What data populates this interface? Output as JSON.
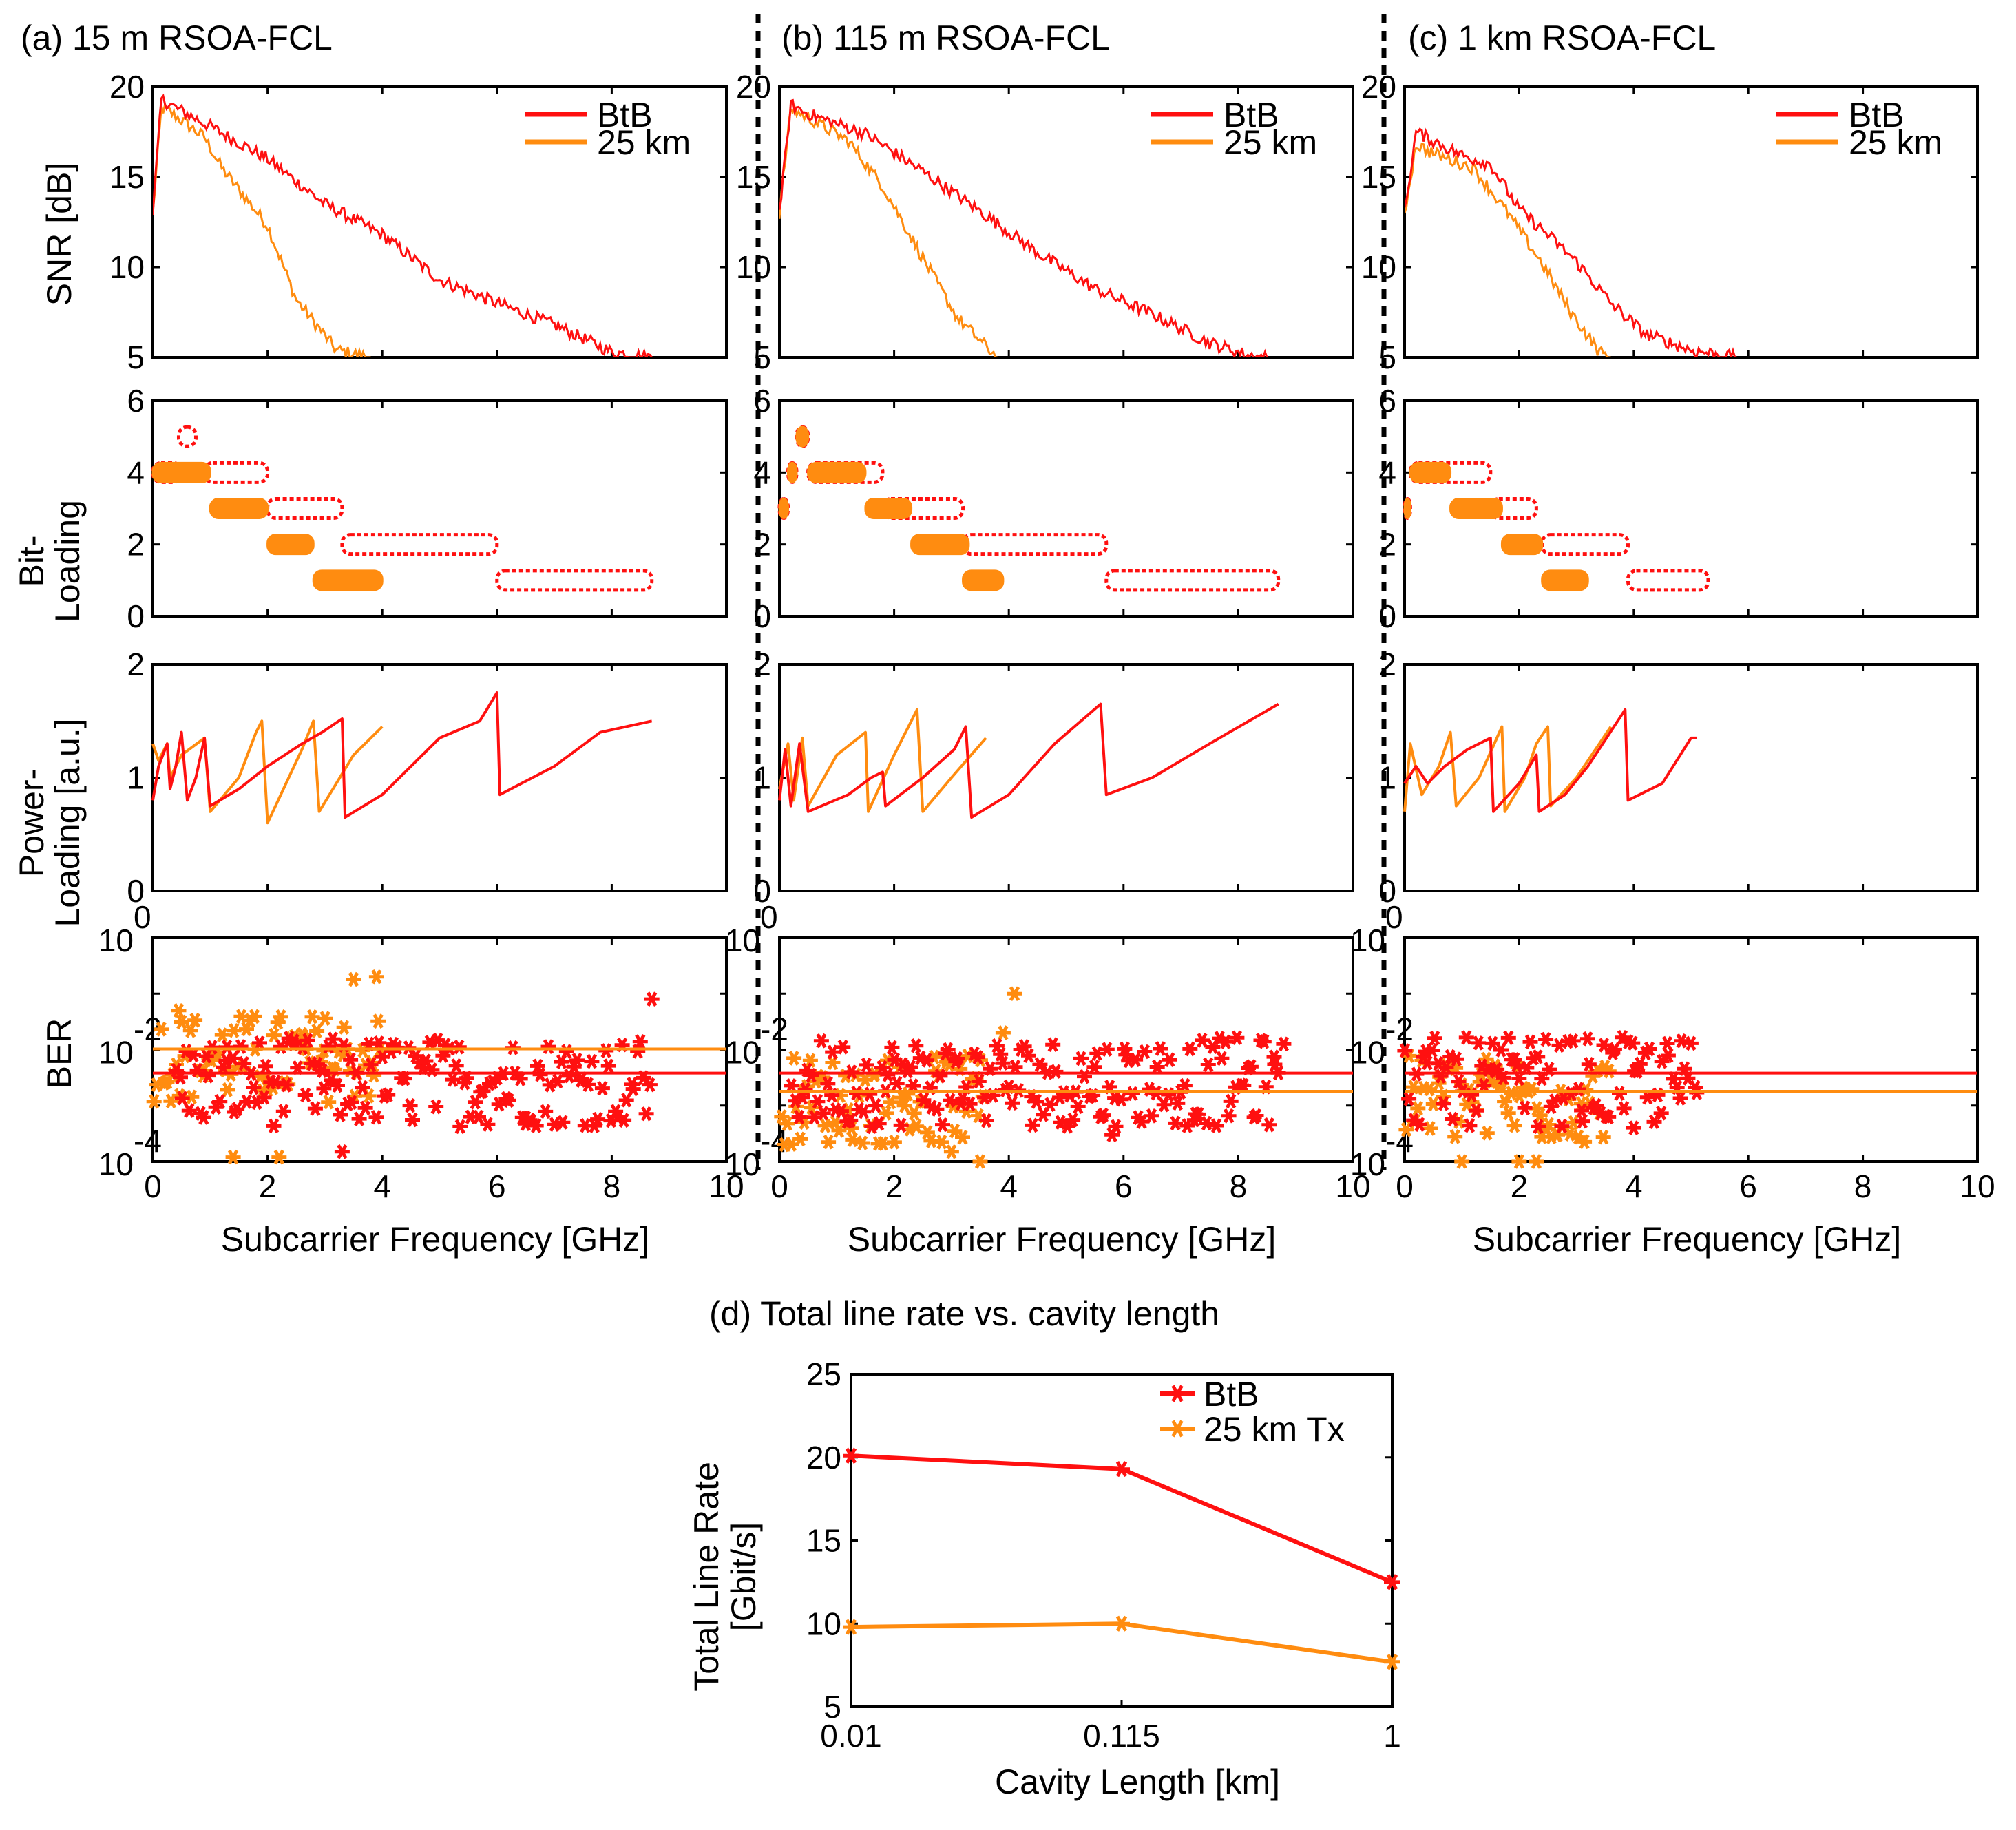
{
  "colors": {
    "btb": "#ff1010",
    "km25": "#ff8c10",
    "axis": "#000000",
    "divider": "#000000"
  },
  "x_axis": {
    "label": "Subcarrier Frequency [GHz]",
    "range": [
      0,
      10
    ],
    "ticks": [
      "0",
      "2",
      "4",
      "6",
      "8",
      "10"
    ]
  },
  "panel_titles": [
    "(a) 15 m RSOA-FCL",
    "(b) 115 m RSOA-FCL",
    "(c) 1 km RSOA-FCL"
  ],
  "row_ylabels": {
    "snr": [
      "SNR [dB]"
    ],
    "bit": [
      "Bit-",
      "Loading"
    ],
    "pwr": [
      "Power-",
      "Loading [a.u.]"
    ],
    "ber": [
      "BER"
    ]
  },
  "row_ranges": {
    "snr": [
      5,
      20
    ],
    "bit": [
      0,
      6
    ],
    "pwr": [
      0,
      2
    ],
    "ber_exp": [
      -4,
      0
    ]
  },
  "row_ticks": {
    "snr": [
      "5",
      "10",
      "15",
      "20"
    ],
    "bit": [
      "0",
      "2",
      "4",
      "6"
    ],
    "pwr": [
      "0",
      "1",
      "2"
    ],
    "ber_base": "10",
    "ber_exp": [
      "0",
      "-2",
      "-4"
    ]
  },
  "legend": {
    "btb": "BtB",
    "km25": "25 km",
    "km25_tx": "25 km Tx"
  },
  "chart_data": [
    {
      "panel": "(a) 15 m RSOA-FCL",
      "type": "line",
      "xlabel": "Subcarrier Frequency [GHz]",
      "snr": {
        "btb": [
          [
            0,
            13
          ],
          [
            0.15,
            19.3
          ],
          [
            0.3,
            19
          ],
          [
            1,
            17.8
          ],
          [
            2,
            16
          ],
          [
            3,
            13.5
          ],
          [
            4,
            11.8
          ],
          [
            5,
            9.3
          ],
          [
            6,
            8
          ],
          [
            7,
            6.8
          ],
          [
            8,
            5.3
          ],
          [
            8.7,
            5
          ]
        ],
        "km25": [
          [
            0,
            13
          ],
          [
            0.15,
            18.8
          ],
          [
            0.3,
            18.6
          ],
          [
            0.9,
            17.2
          ],
          [
            1.2,
            15.5
          ],
          [
            2,
            12.3
          ],
          [
            2.5,
            8.2
          ],
          [
            3.2,
            5.4
          ],
          [
            3.8,
            5
          ]
        ]
      },
      "bit": {
        "btb": [
          [
            0,
            4,
            0.5
          ],
          [
            0.45,
            5,
            0.3
          ],
          [
            0.9,
            4,
            1.1
          ],
          [
            2.0,
            3,
            1.3
          ],
          [
            3.3,
            2,
            2.7
          ],
          [
            6.0,
            1,
            2.7
          ]
        ],
        "km25": [
          [
            0,
            4,
            1.0
          ],
          [
            1.0,
            3,
            1.0
          ],
          [
            2.0,
            2,
            0.8
          ],
          [
            2.8,
            1,
            1.2
          ]
        ]
      },
      "pwr": {
        "btb": [
          [
            0,
            0.8
          ],
          [
            0.1,
            1.1
          ],
          [
            0.25,
            1.3
          ],
          [
            0.3,
            0.9
          ],
          [
            0.4,
            1.1
          ],
          [
            0.5,
            1.4
          ],
          [
            0.6,
            0.8
          ],
          [
            0.75,
            1.0
          ],
          [
            0.9,
            1.35
          ],
          [
            1.0,
            0.75
          ],
          [
            1.5,
            0.9
          ],
          [
            2.0,
            1.1
          ],
          [
            2.6,
            1.3
          ],
          [
            2.95,
            1.4
          ],
          [
            3.3,
            1.52
          ],
          [
            3.35,
            0.65
          ],
          [
            4.0,
            0.85
          ],
          [
            5.0,
            1.35
          ],
          [
            5.7,
            1.5
          ],
          [
            6.0,
            1.75
          ],
          [
            6.05,
            0.85
          ],
          [
            7.0,
            1.1
          ],
          [
            7.8,
            1.4
          ],
          [
            8.7,
            1.5
          ]
        ],
        "km25": [
          [
            0,
            1.3
          ],
          [
            0.1,
            1.15
          ],
          [
            0.25,
            1.3
          ],
          [
            0.3,
            1.0
          ],
          [
            0.5,
            1.2
          ],
          [
            0.9,
            1.35
          ],
          [
            1.0,
            0.7
          ],
          [
            1.5,
            1.0
          ],
          [
            1.8,
            1.4
          ],
          [
            1.9,
            1.5
          ],
          [
            2.0,
            0.6
          ],
          [
            2.6,
            1.25
          ],
          [
            2.8,
            1.5
          ],
          [
            2.9,
            0.7
          ],
          [
            3.5,
            1.2
          ],
          [
            4.0,
            1.45
          ]
        ]
      },
      "ber": {
        "btb_threshold": 0.0038,
        "km25_threshold": 0.0103,
        "btb_range": [
          0.4,
          8.7
        ],
        "km25_range": [
          0,
          4.0
        ],
        "btb_extra": [
          [
            8.7,
            0.08
          ],
          [
            6.5,
            0.0006
          ],
          [
            3.3,
            0.00015
          ]
        ],
        "km25_extra": [
          [
            0.45,
            0.05
          ],
          [
            3.5,
            0.18
          ],
          [
            3.9,
            0.2
          ],
          [
            1.4,
            0.00012
          ],
          [
            2.2,
            0.00012
          ]
        ]
      }
    },
    {
      "panel": "(b) 115 m RSOA-FCL",
      "type": "line",
      "xlabel": "Subcarrier Frequency [GHz]",
      "snr": {
        "btb": [
          [
            0,
            13
          ],
          [
            0.2,
            19
          ],
          [
            0.5,
            18.5
          ],
          [
            1.5,
            17.4
          ],
          [
            2.5,
            15.3
          ],
          [
            3.5,
            13.1
          ],
          [
            4.5,
            10.8
          ],
          [
            5.5,
            8.8
          ],
          [
            6.5,
            7.4
          ],
          [
            7.5,
            5.8
          ],
          [
            8.2,
            5.1
          ],
          [
            8.5,
            5
          ]
        ],
        "km25": [
          [
            0,
            13
          ],
          [
            0.2,
            18.8
          ],
          [
            0.6,
            18.1
          ],
          [
            1.2,
            17
          ],
          [
            1.8,
            14.5
          ],
          [
            2.5,
            10.5
          ],
          [
            3.1,
            7.2
          ],
          [
            3.6,
            5.6
          ],
          [
            3.8,
            5
          ]
        ]
      },
      "bit": {
        "btb": [
          [
            0,
            3,
            0.15
          ],
          [
            0.15,
            4,
            0.15
          ],
          [
            0.3,
            5,
            0.2
          ],
          [
            0.5,
            4,
            1.3
          ],
          [
            1.8,
            3,
            1.4
          ],
          [
            3.2,
            2,
            2.5
          ],
          [
            5.7,
            1,
            3.0
          ]
        ],
        "km25": [
          [
            0,
            3,
            0.15
          ],
          [
            0.15,
            4,
            0.15
          ],
          [
            0.3,
            5,
            0.2
          ],
          [
            0.5,
            4,
            1.0
          ],
          [
            1.5,
            3,
            0.8
          ],
          [
            2.3,
            2,
            1.0
          ],
          [
            3.2,
            1,
            0.7
          ]
        ]
      },
      "pwr": {
        "btb": [
          [
            0,
            0.8
          ],
          [
            0.1,
            1.25
          ],
          [
            0.2,
            0.75
          ],
          [
            0.35,
            1.3
          ],
          [
            0.5,
            0.7
          ],
          [
            1.2,
            0.85
          ],
          [
            1.6,
            1.0
          ],
          [
            1.8,
            1.05
          ],
          [
            1.85,
            0.75
          ],
          [
            2.5,
            1.0
          ],
          [
            3.05,
            1.25
          ],
          [
            3.25,
            1.45
          ],
          [
            3.35,
            0.65
          ],
          [
            4.0,
            0.85
          ],
          [
            4.8,
            1.3
          ],
          [
            5.6,
            1.65
          ],
          [
            5.7,
            0.85
          ],
          [
            6.5,
            1.0
          ],
          [
            7.5,
            1.3
          ],
          [
            8.7,
            1.65
          ]
        ],
        "km25": [
          [
            0,
            0.9
          ],
          [
            0.15,
            1.3
          ],
          [
            0.25,
            0.8
          ],
          [
            0.4,
            1.35
          ],
          [
            0.5,
            0.75
          ],
          [
            1.0,
            1.2
          ],
          [
            1.5,
            1.4
          ],
          [
            1.55,
            0.7
          ],
          [
            2.0,
            1.2
          ],
          [
            2.4,
            1.6
          ],
          [
            2.5,
            0.7
          ],
          [
            3.0,
            1.0
          ],
          [
            3.6,
            1.35
          ]
        ]
      },
      "ber": {
        "btb_threshold": 0.0038,
        "km25_threshold": 0.0018,
        "btb_range": [
          0.2,
          8.8
        ],
        "km25_range": [
          0,
          3.6
        ],
        "btb_extra": [
          [
            5.8,
            0.0003
          ],
          [
            4.9,
            0.0005
          ]
        ],
        "km25_extra": [
          [
            4.1,
            0.1
          ],
          [
            3.9,
            0.02
          ],
          [
            3.0,
            0.00015
          ],
          [
            3.5,
            0.0001
          ]
        ]
      }
    },
    {
      "panel": "(c) 1 km RSOA-FCL",
      "type": "line",
      "xlabel": "Subcarrier Frequency [GHz]",
      "snr": {
        "btb": [
          [
            0,
            13
          ],
          [
            0.2,
            17.5
          ],
          [
            0.5,
            17
          ],
          [
            1,
            16.2
          ],
          [
            1.5,
            15.7
          ],
          [
            2,
            13.2
          ],
          [
            2.5,
            11.8
          ],
          [
            3,
            10.3
          ],
          [
            3.6,
            8
          ],
          [
            4.2,
            6.3
          ],
          [
            5,
            5.4
          ],
          [
            5.8,
            5
          ]
        ],
        "km25": [
          [
            0,
            13
          ],
          [
            0.2,
            16.8
          ],
          [
            0.5,
            16.3
          ],
          [
            1.2,
            15.5
          ],
          [
            1.8,
            13
          ],
          [
            2.4,
            10.2
          ],
          [
            2.9,
            7.5
          ],
          [
            3.4,
            5.3
          ],
          [
            3.6,
            5
          ]
        ]
      },
      "bit": {
        "btb": [
          [
            0,
            3,
            0.1
          ],
          [
            0.1,
            4,
            1.4
          ],
          [
            1.5,
            3,
            0.8
          ],
          [
            2.4,
            2,
            1.5
          ],
          [
            3.9,
            1,
            1.4
          ]
        ],
        "km25": [
          [
            0,
            3,
            0.1
          ],
          [
            0.1,
            4,
            0.7
          ],
          [
            0.8,
            3,
            0.9
          ],
          [
            1.7,
            2,
            0.7
          ],
          [
            2.4,
            1,
            0.8
          ]
        ]
      },
      "pwr": {
        "btb": [
          [
            0,
            0.95
          ],
          [
            0.2,
            1.1
          ],
          [
            0.4,
            0.95
          ],
          [
            0.7,
            1.1
          ],
          [
            1.1,
            1.25
          ],
          [
            1.5,
            1.35
          ],
          [
            1.55,
            0.7
          ],
          [
            2.0,
            0.95
          ],
          [
            2.3,
            1.2
          ],
          [
            2.35,
            0.7
          ],
          [
            2.8,
            0.85
          ],
          [
            3.2,
            1.1
          ],
          [
            3.85,
            1.6
          ],
          [
            3.9,
            0.8
          ],
          [
            4.5,
            0.95
          ],
          [
            5.0,
            1.35
          ],
          [
            5.1,
            1.35
          ]
        ],
        "km25": [
          [
            0,
            0.7
          ],
          [
            0.1,
            1.3
          ],
          [
            0.3,
            0.85
          ],
          [
            0.6,
            1.1
          ],
          [
            0.8,
            1.4
          ],
          [
            0.9,
            0.75
          ],
          [
            1.3,
            1.0
          ],
          [
            1.7,
            1.45
          ],
          [
            1.75,
            0.7
          ],
          [
            2.1,
            1.0
          ],
          [
            2.3,
            1.3
          ],
          [
            2.5,
            1.45
          ],
          [
            2.55,
            0.75
          ],
          [
            3.0,
            1.0
          ],
          [
            3.6,
            1.45
          ]
        ]
      },
      "ber": {
        "btb_threshold": 0.0038,
        "km25_threshold": 0.0018,
        "btb_range": [
          0,
          5.1
        ],
        "km25_range": [
          0,
          3.6
        ],
        "btb_extra": [
          [
            4.0,
            0.0004
          ],
          [
            5.1,
            0.0017
          ]
        ],
        "km25_extra": [
          [
            1.0,
            0.0001
          ],
          [
            2.0,
            0.0001
          ],
          [
            2.3,
            0.0001
          ]
        ]
      }
    },
    {
      "panel": "(d) Total line rate vs. cavity length",
      "type": "line",
      "title": "(d) Total line rate vs. cavity length",
      "xlabel": "Cavity Length [km]",
      "ylabel": [
        "Total Line Rate",
        "[Gbit/s]"
      ],
      "categories": [
        "0.01",
        "0.115",
        "1"
      ],
      "ylim": [
        5,
        25
      ],
      "y_ticks": [
        "5",
        "10",
        "15",
        "20",
        "25"
      ],
      "series": [
        {
          "name": "BtB",
          "values": [
            20.1,
            19.3,
            12.5
          ]
        },
        {
          "name": "25 km Tx",
          "values": [
            9.8,
            10.0,
            7.7
          ]
        }
      ]
    }
  ]
}
